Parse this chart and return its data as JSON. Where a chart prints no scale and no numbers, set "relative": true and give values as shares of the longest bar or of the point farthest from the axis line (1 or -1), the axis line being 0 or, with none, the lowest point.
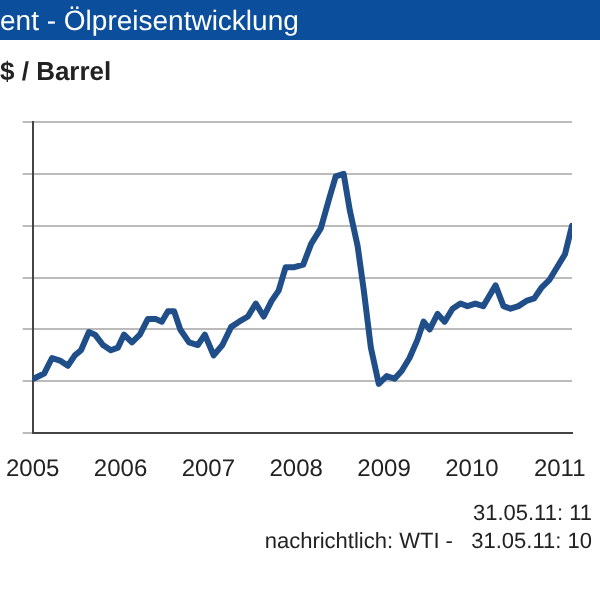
{
  "chart_data": {
    "type": "line",
    "title": "ent - Ölpreisentwicklung",
    "subtitle": "$ / Barrel",
    "relative": true,
    "grid": "y",
    "marker": "none",
    "line_style": "solid",
    "x": [
      2005.01,
      2005.13,
      2005.22,
      2005.31,
      2005.4,
      2005.48,
      2005.55,
      2005.64,
      2005.71,
      2005.8,
      2005.89,
      2005.97,
      2006.04,
      2006.13,
      2006.22,
      2006.31,
      2006.4,
      2006.47,
      2006.54,
      2006.61,
      2006.68,
      2006.78,
      2006.88,
      2006.96,
      2007.06,
      2007.16,
      2007.26,
      2007.35,
      2007.45,
      2007.54,
      2007.63,
      2007.72,
      2007.8,
      2007.88,
      2007.98,
      2008.08,
      2008.17,
      2008.28,
      2008.38,
      2008.45,
      2008.54,
      2008.61,
      2008.7,
      2008.77,
      2008.85,
      2008.94,
      2009.03,
      2009.12,
      2009.2,
      2009.29,
      2009.38,
      2009.45,
      2009.52,
      2009.61,
      2009.69,
      2009.78,
      2009.87,
      2009.95,
      2010.04,
      2010.13,
      2010.2,
      2010.27,
      2010.36,
      2010.44,
      2010.53,
      2010.62,
      2010.71,
      2010.79,
      2010.88,
      2010.97,
      2011.06,
      2011.14
    ],
    "series": [
      {
        "color": "#1f4e89",
        "values": [
          0.21,
          0.23,
          0.29,
          0.28,
          0.26,
          0.3,
          0.32,
          0.39,
          0.38,
          0.34,
          0.32,
          0.33,
          0.38,
          0.35,
          0.38,
          0.44,
          0.44,
          0.43,
          0.47,
          0.47,
          0.4,
          0.35,
          0.34,
          0.38,
          0.3,
          0.34,
          0.41,
          0.43,
          0.45,
          0.5,
          0.45,
          0.51,
          0.55,
          0.64,
          0.64,
          0.65,
          0.73,
          0.79,
          0.91,
          0.99,
          1,
          0.86,
          0.72,
          0.55,
          0.33,
          0.19,
          0.22,
          0.21,
          0.24,
          0.29,
          0.36,
          0.43,
          0.4,
          0.46,
          0.43,
          0.48,
          0.5,
          0.49,
          0.5,
          0.49,
          0.53,
          0.57,
          0.49,
          0.48,
          0.49,
          0.51,
          0.52,
          0.56,
          0.59,
          0.64,
          0.69,
          0.8
        ]
      }
    ],
    "xlim": [
      2005,
      2011.14
    ],
    "xticks": [
      2005,
      2006,
      2007,
      2008,
      2009,
      2010,
      2011
    ],
    "annotations": [
      "31.05.11: 11",
      "nachrichtlich: WTI -   31.05.11: 10"
    ]
  }
}
